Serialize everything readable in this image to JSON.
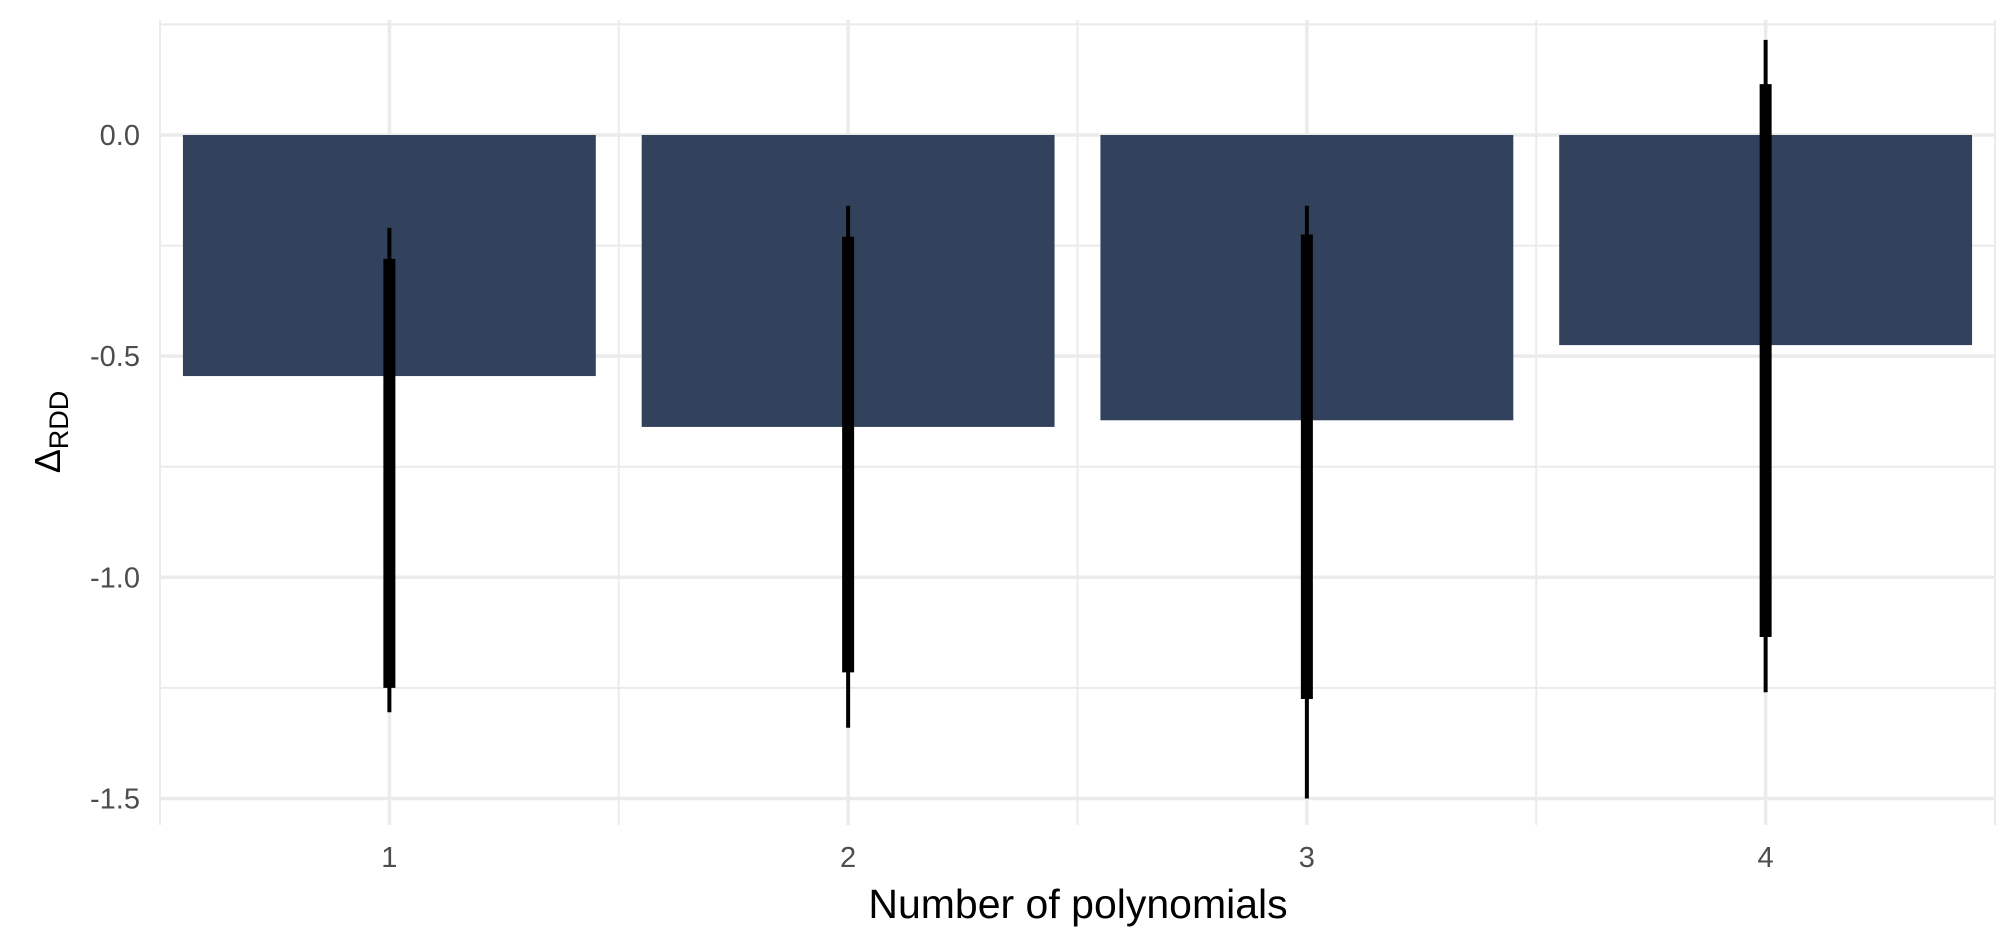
{
  "chart_data": {
    "type": "bar",
    "categories": [
      "1",
      "2",
      "3",
      "4"
    ],
    "values": [
      -0.545,
      -0.66,
      -0.645,
      -0.475
    ],
    "interval_inner": [
      [
        -1.25,
        -0.28
      ],
      [
        -1.215,
        -0.23
      ],
      [
        -1.275,
        -0.225
      ],
      [
        -1.135,
        0.115
      ]
    ],
    "interval_outer": [
      [
        -1.305,
        -0.21
      ],
      [
        -1.34,
        -0.16
      ],
      [
        -1.5,
        -0.16
      ],
      [
        -1.26,
        0.215
      ]
    ],
    "xlabel": "Number of polynomials",
    "ylabel": "Δ",
    "ylabel_subscript": "RDD",
    "ylim": [
      -1.56,
      0.26
    ],
    "yticks": [
      0.0,
      -0.5,
      -1.0,
      -1.5
    ],
    "ytick_labels": [
      "0.0",
      "-0.5",
      "-1.0",
      "-1.5"
    ],
    "grid": true,
    "bar_color": "#33425c",
    "interval_color": "#000000",
    "grid_color": "#ebebeb"
  }
}
